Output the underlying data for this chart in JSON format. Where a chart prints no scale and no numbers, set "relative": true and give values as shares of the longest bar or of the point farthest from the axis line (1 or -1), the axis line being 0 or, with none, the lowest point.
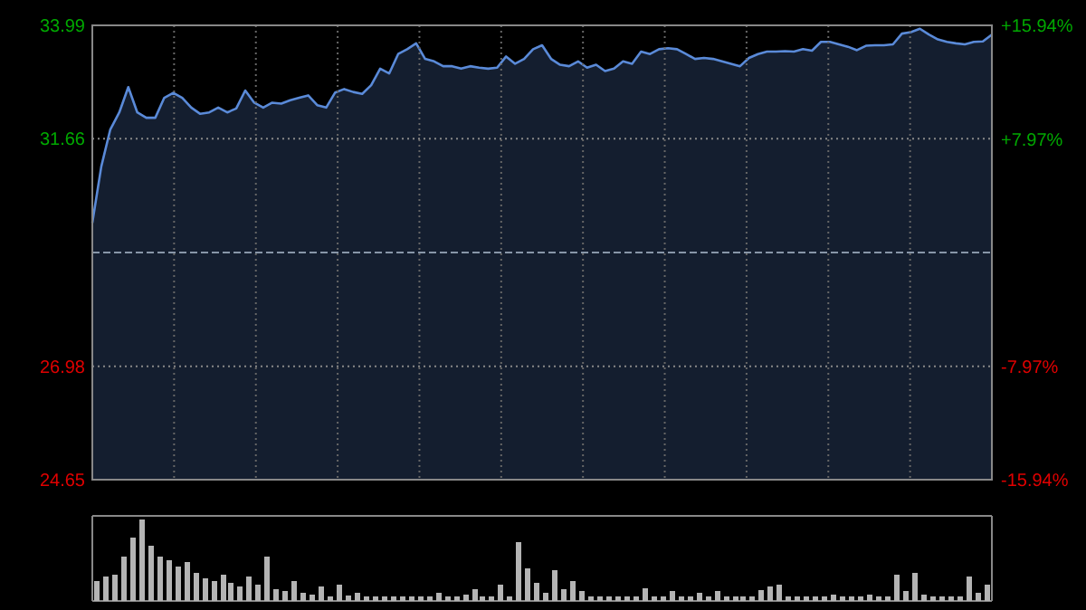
{
  "chart_data": [
    {
      "type": "area",
      "categories": [
        null,
        null,
        null,
        null,
        null,
        null,
        null,
        null,
        null,
        null,
        null,
        null,
        null,
        null,
        null,
        null,
        null,
        null,
        null,
        null,
        null,
        null,
        null,
        null,
        null,
        null,
        null,
        null,
        null,
        null,
        null,
        null,
        null,
        null,
        null,
        null,
        null,
        null,
        null,
        null,
        null,
        null,
        null,
        null,
        null,
        null,
        null,
        null,
        null,
        null,
        null,
        null,
        null,
        null,
        null,
        null,
        null,
        null,
        null,
        null,
        null,
        null,
        null,
        null,
        null,
        null,
        null,
        null,
        null,
        null,
        null,
        null,
        null,
        null,
        null,
        null,
        null,
        null,
        null,
        null,
        null,
        null,
        null,
        null,
        null,
        null,
        null,
        null,
        null,
        null,
        null,
        null,
        null,
        null,
        null,
        null,
        null,
        null,
        null,
        null,
        null
      ],
      "ylim": [
        24.65,
        33.99
      ],
      "yticks": [
        24.65,
        26.98,
        31.66,
        33.99
      ],
      "y2lim": [
        -15.94,
        15.94
      ],
      "y2ticks": [
        {
          "value": -15.94,
          "label": "-15.94%"
        },
        {
          "value": -7.97,
          "label": "-7.97%"
        },
        {
          "value": 7.97,
          "label": "+7.97%"
        },
        {
          "value": 15.94,
          "label": "+15.94%"
        }
      ],
      "tick_labels": "y",
      "grid": true,
      "ref_lines": [
        {
          "axis": "y",
          "value": 29.32,
          "line_style": "dashed"
        }
      ],
      "series": [
        {
          "color": "#5a8ad8",
          "values": [
            29.93,
            31.09,
            31.85,
            32.2,
            32.72,
            32.2,
            32.09,
            32.09,
            32.5,
            32.6,
            32.5,
            32.3,
            32.17,
            32.2,
            32.3,
            32.2,
            32.28,
            32.65,
            32.4,
            32.3,
            32.4,
            32.38,
            32.45,
            32.5,
            32.55,
            32.35,
            32.3,
            32.61,
            32.68,
            32.62,
            32.58,
            32.76,
            33.1,
            33.0,
            33.4,
            33.5,
            33.62,
            33.3,
            33.25,
            33.15,
            33.15,
            33.1,
            33.15,
            33.12,
            33.1,
            33.12,
            33.35,
            33.2,
            33.3,
            33.5,
            33.58,
            33.3,
            33.18,
            33.15,
            33.25,
            33.12,
            33.18,
            33.05,
            33.1,
            33.25,
            33.2,
            33.45,
            33.4,
            33.5,
            33.52,
            33.5,
            33.4,
            33.3,
            33.32,
            33.3,
            33.25,
            33.2,
            33.15,
            33.32,
            33.4,
            33.45,
            33.45,
            33.46,
            33.45,
            33.5,
            33.47,
            33.65,
            33.65,
            33.6,
            33.55,
            33.48,
            33.57,
            33.58,
            33.58,
            33.6,
            33.82,
            33.85,
            33.92,
            33.8,
            33.7,
            33.65,
            33.62,
            33.6,
            33.65,
            33.66,
            33.8
          ]
        }
      ]
    },
    {
      "type": "bar",
      "relative": true,
      "color": "#b4b4b4",
      "categories": [
        null,
        null,
        null,
        null,
        null,
        null,
        null,
        null,
        null,
        null,
        null,
        null,
        null,
        null,
        null,
        null,
        null,
        null,
        null,
        null,
        null,
        null,
        null,
        null,
        null,
        null,
        null,
        null,
        null,
        null,
        null,
        null,
        null,
        null,
        null,
        null,
        null,
        null,
        null,
        null,
        null,
        null,
        null,
        null,
        null,
        null,
        null,
        null,
        null,
        null,
        null,
        null,
        null,
        null,
        null,
        null,
        null,
        null,
        null,
        null,
        null,
        null,
        null,
        null,
        null,
        null,
        null,
        null,
        null,
        null,
        null,
        null,
        null,
        null,
        null,
        null,
        null,
        null,
        null,
        null,
        null,
        null,
        null,
        null,
        null,
        null,
        null,
        null,
        null,
        null,
        null,
        null,
        null,
        null,
        null,
        null,
        null,
        null,
        null,
        null
      ],
      "values": [
        0.25,
        0.3,
        0.32,
        0.55,
        0.78,
        1,
        0.68,
        0.55,
        0.5,
        0.42,
        0.48,
        0.35,
        0.28,
        0.25,
        0.32,
        0.22,
        0.18,
        0.3,
        0.2,
        0.55,
        0.15,
        0.12,
        0.25,
        0.1,
        0.08,
        0.18,
        0.06,
        0.2,
        0.07,
        0.1,
        0.06,
        0.06,
        0.06,
        0.06,
        0.06,
        0.06,
        0.06,
        0.06,
        0.1,
        0.06,
        0.06,
        0.08,
        0.15,
        0.06,
        0.06,
        0.2,
        0.06,
        0.72,
        0.4,
        0.22,
        0.1,
        0.38,
        0.15,
        0.25,
        0.12,
        0.06,
        0.06,
        0.06,
        0.06,
        0.06,
        0.06,
        0.16,
        0.06,
        0.06,
        0.12,
        0.06,
        0.06,
        0.1,
        0.06,
        0.12,
        0.06,
        0.06,
        0.06,
        0.06,
        0.13,
        0.18,
        0.2,
        0.06,
        0.06,
        0.06,
        0.06,
        0.06,
        0.08,
        0.06,
        0.06,
        0.06,
        0.08,
        0.06,
        0.06,
        0.32,
        0.12,
        0.35,
        0.08,
        0.06,
        0.06,
        0.06,
        0.06,
        0.3,
        0.1,
        0.2
      ]
    }
  ]
}
